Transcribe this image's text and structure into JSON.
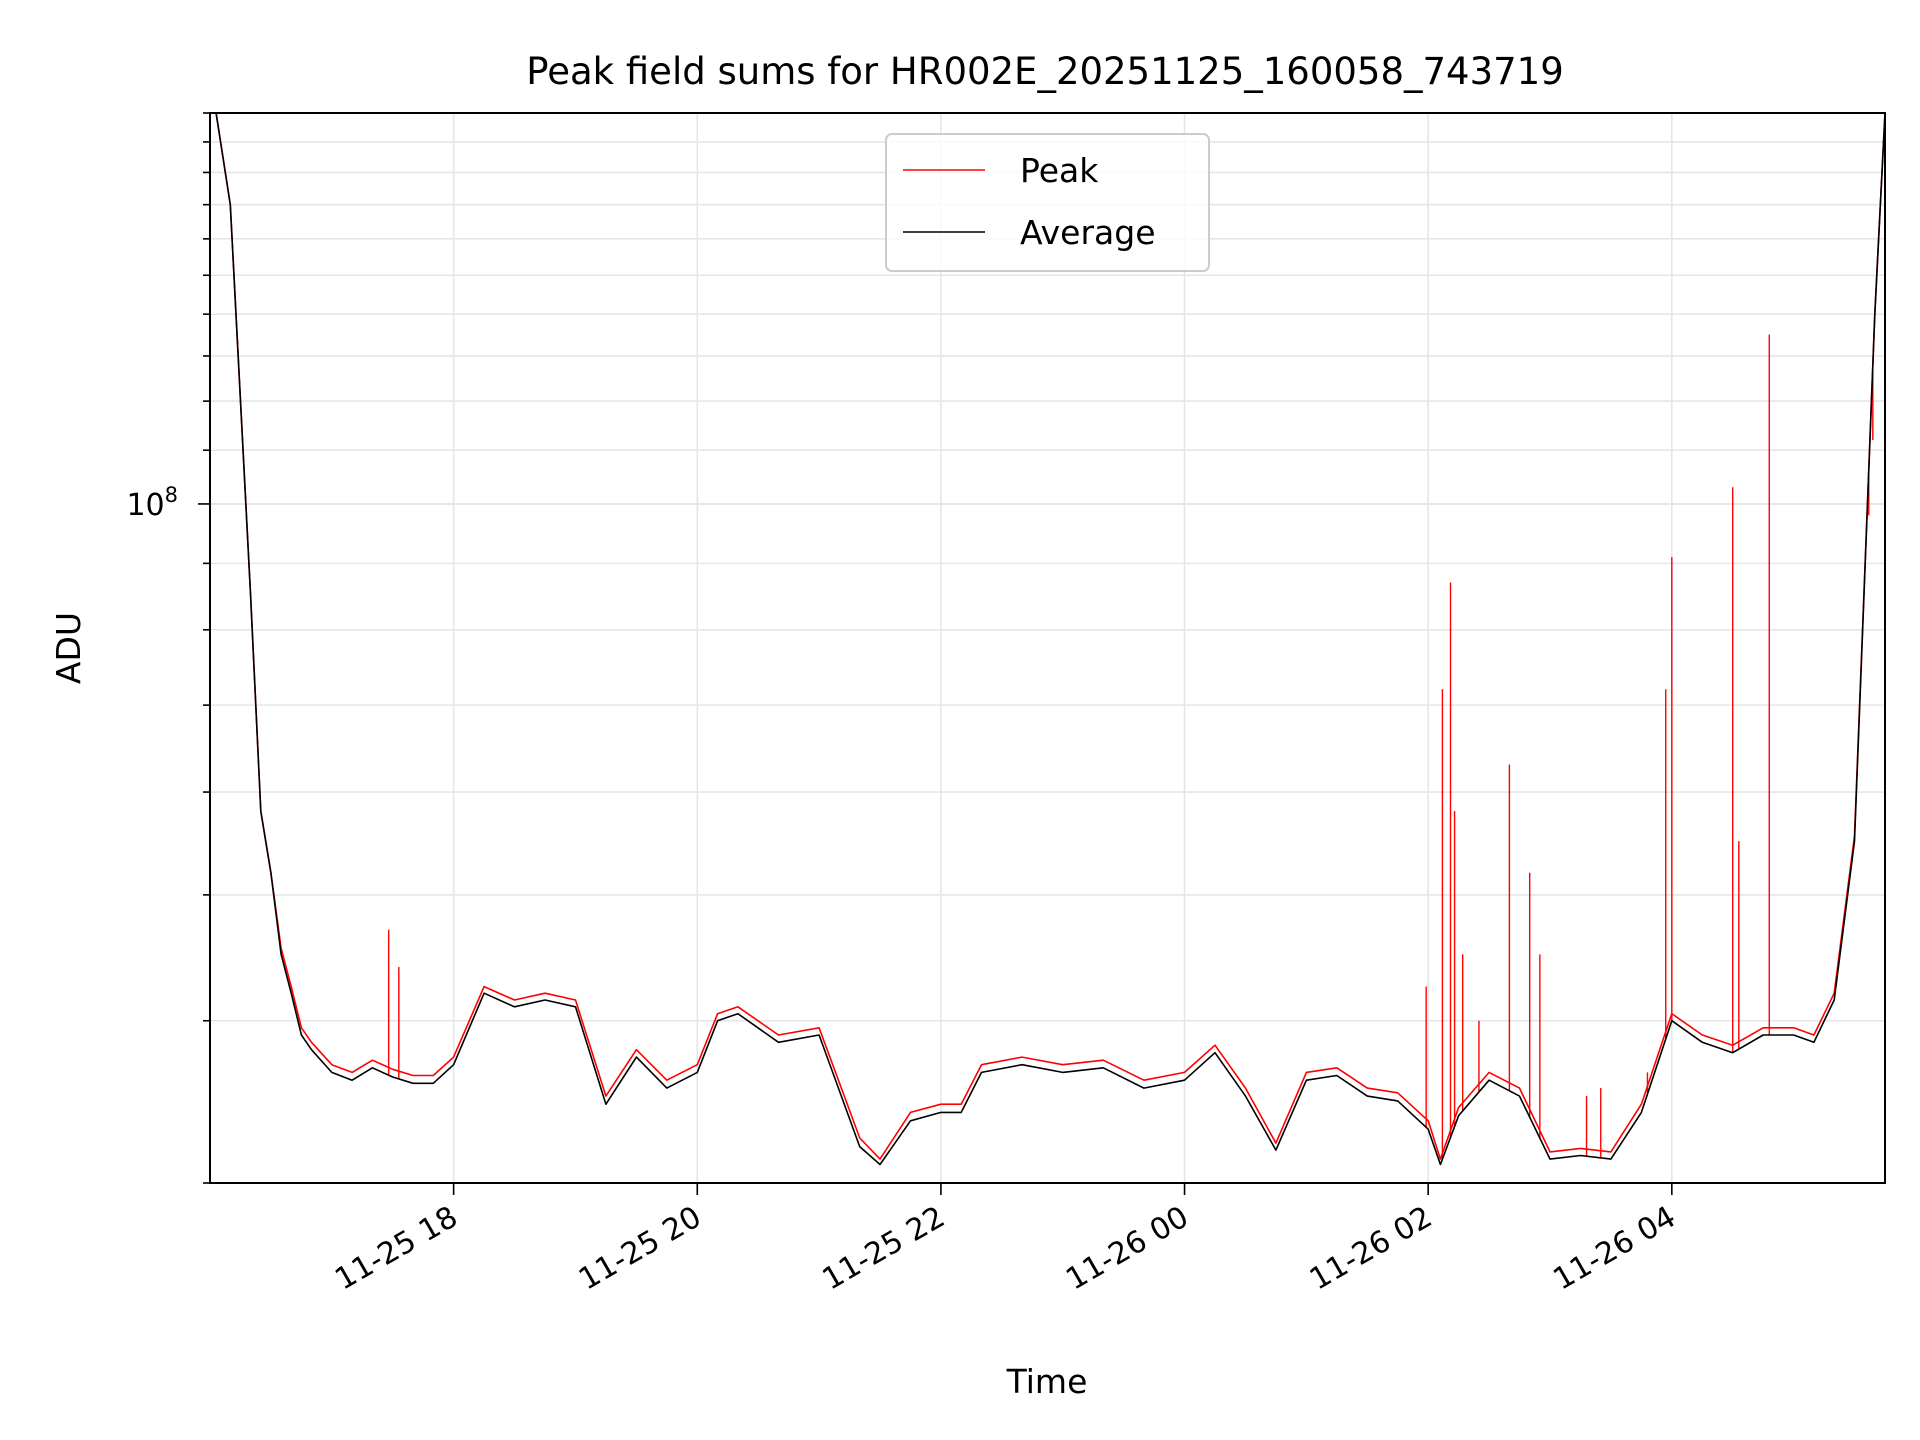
{
  "chart_data": {
    "type": "line",
    "title": "Peak field sums for HR002E_20251125_160058_743719",
    "xlabel": "Time",
    "ylabel": "ADU",
    "y_scale": "log",
    "y_major_tick_label": "10^8",
    "ylim": [
      30000000,
      200000000
    ],
    "xlim": [
      "2025-11-25 16:00",
      "2025-11-26 05:45"
    ],
    "grid": true,
    "legend_position": "top-center",
    "x_ticks": [
      {
        "t": "2025-11-25 18:00",
        "label": "11-25 18"
      },
      {
        "t": "2025-11-25 20:00",
        "label": "11-25 20"
      },
      {
        "t": "2025-11-25 22:00",
        "label": "11-25 22"
      },
      {
        "t": "2025-11-26 00:00",
        "label": "11-26 00"
      },
      {
        "t": "2025-11-26 02:00",
        "label": "11-26 02"
      },
      {
        "t": "2025-11-26 04:00",
        "label": "11-26 04"
      }
    ],
    "series": [
      {
        "name": "Average",
        "color": "#000000",
        "x": [
          "2025-11-25 16:03",
          "2025-11-25 16:10",
          "2025-11-25 16:15",
          "2025-11-25 16:20",
          "2025-11-25 16:25",
          "2025-11-25 16:30",
          "2025-11-25 16:35",
          "2025-11-25 16:40",
          "2025-11-25 16:45",
          "2025-11-25 16:50",
          "2025-11-25 17:00",
          "2025-11-25 17:10",
          "2025-11-25 17:20",
          "2025-11-25 17:30",
          "2025-11-25 17:40",
          "2025-11-25 17:50",
          "2025-11-25 18:00",
          "2025-11-25 18:15",
          "2025-11-25 18:30",
          "2025-11-25 18:45",
          "2025-11-25 19:00",
          "2025-11-25 19:15",
          "2025-11-25 19:30",
          "2025-11-25 19:45",
          "2025-11-25 20:00",
          "2025-11-25 20:10",
          "2025-11-25 20:20",
          "2025-11-25 20:40",
          "2025-11-25 21:00",
          "2025-11-25 21:20",
          "2025-11-25 21:30",
          "2025-11-25 21:45",
          "2025-11-25 22:00",
          "2025-11-25 22:10",
          "2025-11-25 22:20",
          "2025-11-25 22:40",
          "2025-11-25 23:00",
          "2025-11-25 23:20",
          "2025-11-25 23:40",
          "2025-11-26 00:00",
          "2025-11-26 00:15",
          "2025-11-26 00:30",
          "2025-11-26 00:45",
          "2025-11-26 01:00",
          "2025-11-26 01:15",
          "2025-11-26 01:30",
          "2025-11-26 01:45",
          "2025-11-26 02:00",
          "2025-11-26 02:06",
          "2025-11-26 02:15",
          "2025-11-26 02:30",
          "2025-11-26 02:45",
          "2025-11-26 03:00",
          "2025-11-26 03:15",
          "2025-11-26 03:30",
          "2025-11-26 03:45",
          "2025-11-26 04:00",
          "2025-11-26 04:15",
          "2025-11-26 04:30",
          "2025-11-26 04:45",
          "2025-11-26 05:00",
          "2025-11-26 05:10",
          "2025-11-26 05:20",
          "2025-11-26 05:30",
          "2025-11-26 05:40",
          "2025-11-26 05:45"
        ],
        "y": [
          200000000,
          170000000,
          120000000,
          85000000,
          58000000,
          52000000,
          45000000,
          42000000,
          39000000,
          38000000,
          36500000,
          36000000,
          36800000,
          36200000,
          35800000,
          35800000,
          37000000,
          42000000,
          41000000,
          41500000,
          41000000,
          34500000,
          37500000,
          35500000,
          36500000,
          40000000,
          40500000,
          38500000,
          39000000,
          32000000,
          31000000,
          33500000,
          34000000,
          34000000,
          36500000,
          37000000,
          36500000,
          36800000,
          35500000,
          36000000,
          37800000,
          35000000,
          31800000,
          36000000,
          36300000,
          35000000,
          34700000,
          33000000,
          31000000,
          33800000,
          36000000,
          35000000,
          31300000,
          31500000,
          31300000,
          34000000,
          40000000,
          38500000,
          37800000,
          39000000,
          39000000,
          38500000,
          41500000,
          55000000,
          140000000,
          200000000
        ]
      },
      {
        "name": "Peak",
        "color": "#ff0000",
        "x": [
          "2025-11-25 16:03",
          "2025-11-25 16:10",
          "2025-11-25 16:15",
          "2025-11-25 16:20",
          "2025-11-25 16:25",
          "2025-11-25 16:30",
          "2025-11-25 16:35",
          "2025-11-25 16:40",
          "2025-11-25 16:45",
          "2025-11-25 16:50",
          "2025-11-25 17:00",
          "2025-11-25 17:10",
          "2025-11-25 17:20",
          "2025-11-25 17:30",
          "2025-11-25 17:40",
          "2025-11-25 17:50",
          "2025-11-25 18:00",
          "2025-11-25 18:15",
          "2025-11-25 18:30",
          "2025-11-25 18:45",
          "2025-11-25 19:00",
          "2025-11-25 19:15",
          "2025-11-25 19:30",
          "2025-11-25 19:45",
          "2025-11-25 20:00",
          "2025-11-25 20:10",
          "2025-11-25 20:20",
          "2025-11-25 20:40",
          "2025-11-25 21:00",
          "2025-11-25 21:20",
          "2025-11-25 21:30",
          "2025-11-25 21:45",
          "2025-11-25 22:00",
          "2025-11-25 22:10",
          "2025-11-25 22:20",
          "2025-11-25 22:40",
          "2025-11-25 23:00",
          "2025-11-25 23:20",
          "2025-11-25 23:40",
          "2025-11-26 00:00",
          "2025-11-26 00:15",
          "2025-11-26 00:30",
          "2025-11-26 00:45",
          "2025-11-26 01:00",
          "2025-11-26 01:15",
          "2025-11-26 01:30",
          "2025-11-26 01:45",
          "2025-11-26 02:00",
          "2025-11-26 02:06",
          "2025-11-26 02:15",
          "2025-11-26 02:30",
          "2025-11-26 02:45",
          "2025-11-26 03:00",
          "2025-11-26 03:15",
          "2025-11-26 03:30",
          "2025-11-26 03:45",
          "2025-11-26 04:00",
          "2025-11-26 04:15",
          "2025-11-26 04:30",
          "2025-11-26 04:45",
          "2025-11-26 05:00",
          "2025-11-26 05:10",
          "2025-11-26 05:20",
          "2025-11-26 05:30",
          "2025-11-26 05:40",
          "2025-11-26 05:45"
        ],
        "y": [
          200000000,
          170000000,
          120000000,
          85000000,
          58000000,
          52000000,
          45500000,
          42500000,
          39500000,
          38500000,
          37000000,
          36500000,
          37300000,
          36700000,
          36300000,
          36300000,
          37500000,
          42500000,
          41500000,
          42000000,
          41500000,
          35000000,
          38000000,
          36000000,
          37000000,
          40500000,
          41000000,
          39000000,
          39500000,
          32500000,
          31300000,
          34000000,
          34500000,
          34500000,
          37000000,
          37500000,
          37000000,
          37300000,
          36000000,
          36500000,
          38300000,
          35500000,
          32200000,
          36500000,
          36800000,
          35500000,
          35200000,
          33500000,
          31300000,
          34300000,
          36500000,
          35500000,
          31700000,
          31900000,
          31700000,
          34500000,
          40500000,
          39000000,
          38300000,
          39500000,
          39500000,
          39000000,
          42000000,
          55500000,
          140000000,
          200000000
        ],
        "spikes": [
          {
            "t": "2025-11-25 17:28",
            "y": 47000000
          },
          {
            "t": "2025-11-25 17:33",
            "y": 44000000
          },
          {
            "t": "2025-11-26 01:59",
            "y": 42500000
          },
          {
            "t": "2025-11-26 02:07",
            "y": 72000000
          },
          {
            "t": "2025-11-26 02:11",
            "y": 87000000
          },
          {
            "t": "2025-11-26 02:13",
            "y": 58000000
          },
          {
            "t": "2025-11-26 02:17",
            "y": 45000000
          },
          {
            "t": "2025-11-26 02:25",
            "y": 40000000
          },
          {
            "t": "2025-11-26 02:40",
            "y": 63000000
          },
          {
            "t": "2025-11-26 02:50",
            "y": 52000000
          },
          {
            "t": "2025-11-26 02:55",
            "y": 45000000
          },
          {
            "t": "2025-11-26 03:18",
            "y": 35000000
          },
          {
            "t": "2025-11-26 03:25",
            "y": 35500000
          },
          {
            "t": "2025-11-26 03:48",
            "y": 36500000
          },
          {
            "t": "2025-11-26 03:57",
            "y": 72000000
          },
          {
            "t": "2025-11-26 04:00",
            "y": 91000000
          },
          {
            "t": "2025-11-26 04:30",
            "y": 103000000
          },
          {
            "t": "2025-11-26 04:33",
            "y": 55000000
          },
          {
            "t": "2025-11-26 04:48",
            "y": 135000000
          },
          {
            "t": "2025-11-26 05:37",
            "y": 98000000
          },
          {
            "t": "2025-11-26 05:39",
            "y": 112000000
          }
        ]
      }
    ]
  }
}
